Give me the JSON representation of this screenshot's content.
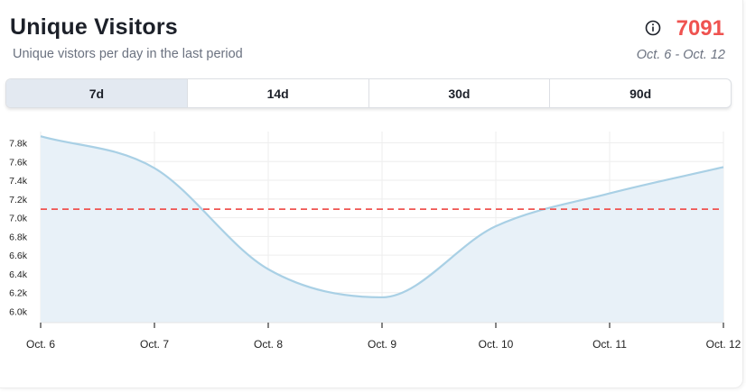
{
  "header": {
    "title": "Unique Visitors",
    "subtitle": "Unique vistors per day in the last period",
    "total": "7091",
    "range": "Oct. 6 - Oct. 12",
    "info_icon": "info-circle-icon"
  },
  "tabs": [
    {
      "label": "7d",
      "active": true
    },
    {
      "label": "14d",
      "active": false
    },
    {
      "label": "30d",
      "active": false
    },
    {
      "label": "90d",
      "active": false
    }
  ],
  "colors": {
    "accent": "#ef5350",
    "line": "#a9d0e5",
    "area": "#e8f1f8",
    "reference_line": "#ef5350"
  },
  "chart_data": {
    "type": "area",
    "x": [
      "Oct. 6",
      "Oct. 7",
      "Oct. 8",
      "Oct. 9",
      "Oct. 10",
      "Oct. 11",
      "Oct. 12"
    ],
    "values": [
      7870,
      7530,
      6450,
      6150,
      6910,
      7260,
      7540
    ],
    "reference_value": 7091,
    "yticks": [
      "6.0k",
      "6.2k",
      "6.4k",
      "6.6k",
      "6.8k",
      "7.0k",
      "7.2k",
      "7.4k",
      "7.6k",
      "7.8k"
    ],
    "ytick_values": [
      6000,
      6200,
      6400,
      6600,
      6800,
      7000,
      7200,
      7400,
      7600,
      7800
    ],
    "ylim": [
      5880,
      7920
    ],
    "grid": true,
    "smooth": true
  }
}
